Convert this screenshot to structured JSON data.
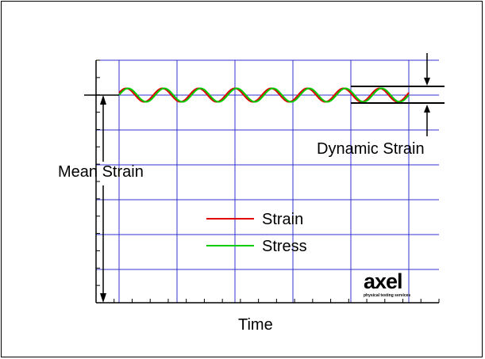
{
  "chart_data": {
    "type": "line",
    "title": "",
    "xlabel": "Time",
    "ylabel": "",
    "x_ticks_minor_count": 19,
    "y_ticks_minor_count": 14,
    "cycles": 8,
    "series": [
      {
        "name": "Strain",
        "color": "#e00000"
      },
      {
        "name": "Stress",
        "color": "#00cc00"
      }
    ],
    "annotations": {
      "mean_strain": "Mean Strain",
      "dynamic_strain": "Dynamic Strain"
    },
    "logo": {
      "text": "axel",
      "tagline": "physical testing services"
    },
    "grid": true,
    "grid_color": "#3333cc"
  }
}
